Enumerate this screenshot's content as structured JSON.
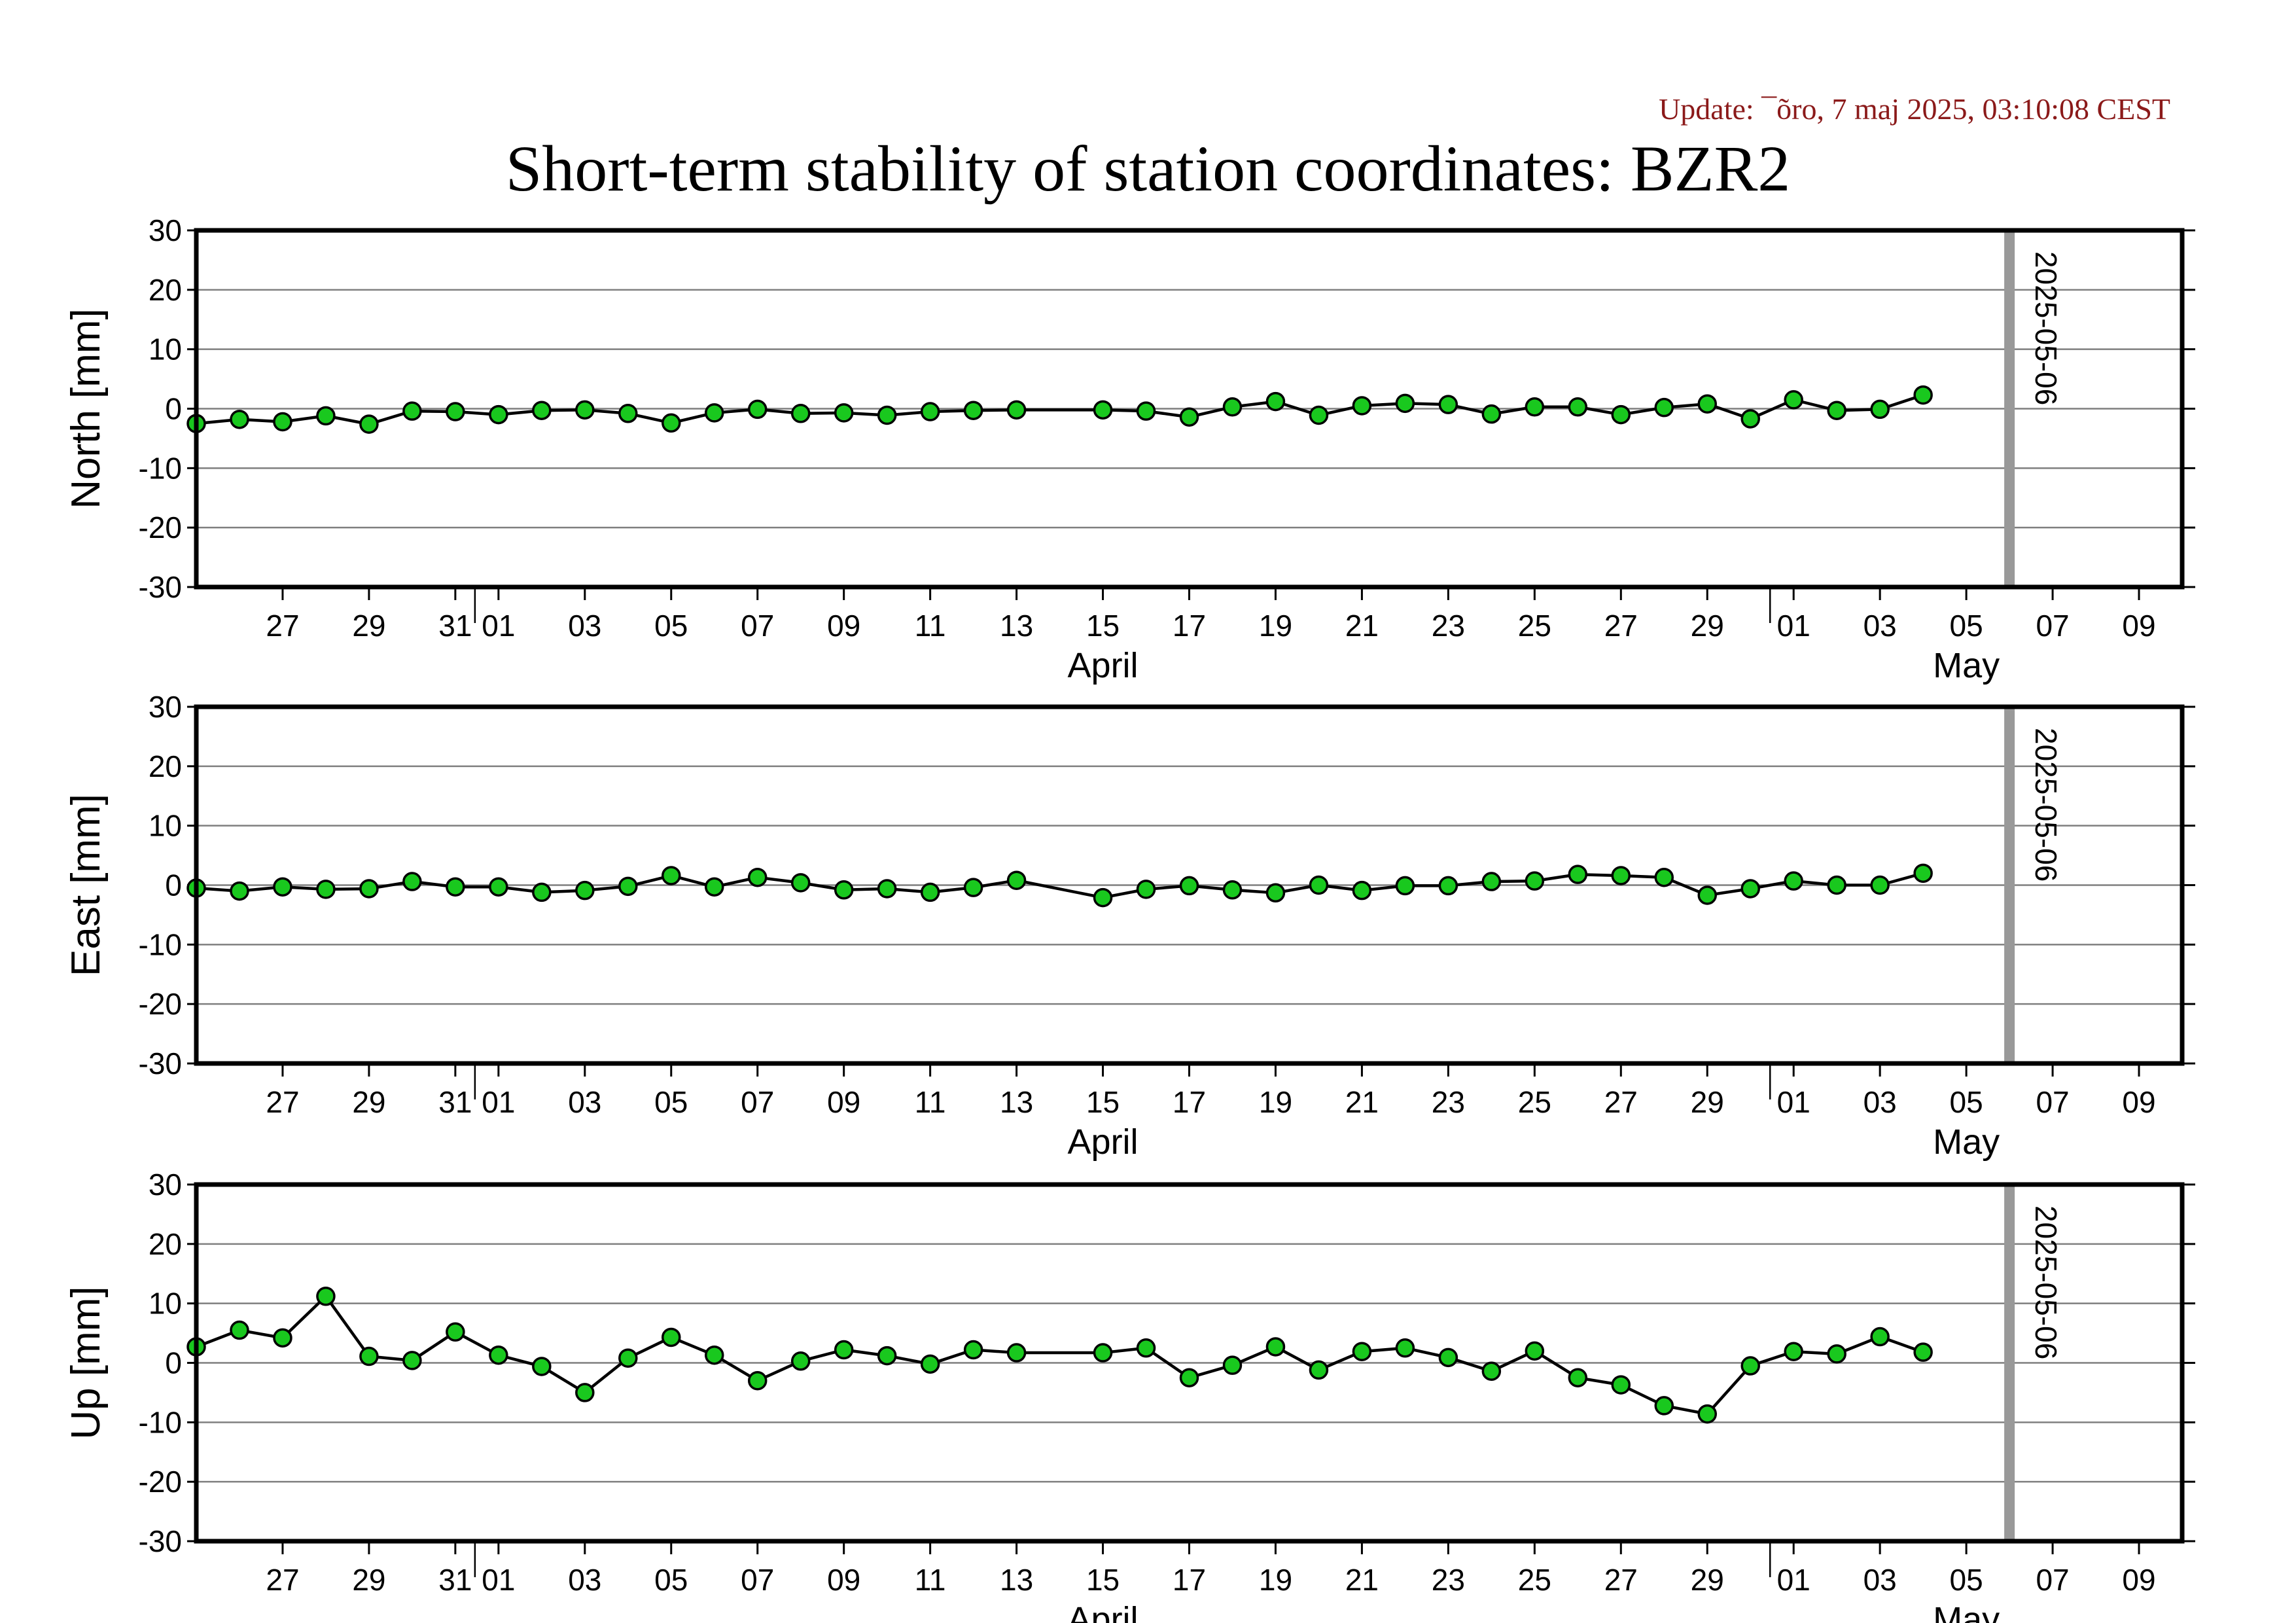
{
  "update_text": "Update: ¯õro, 7 maj 2025, 03:10:08 CEST",
  "title": "Short-term stability of station coordinates: BZR2",
  "colors": {
    "point_fill": "#19c81e",
    "point_stroke": "#000000",
    "line": "#000000",
    "grid": "#7f7f7f",
    "marker_line": "#999999",
    "update_text": "#8b1a1a"
  },
  "chart_data": [
    {
      "type": "line",
      "title": "",
      "ylabel": "North [mm]",
      "ylim": [
        -30,
        30
      ],
      "yticks": [
        -30,
        -20,
        -10,
        0,
        10,
        20,
        30
      ],
      "xlim": [
        "2025-03-25",
        "2025-05-10"
      ],
      "x_tick_dates": [
        "2025-03-27",
        "2025-03-29",
        "2025-03-31",
        "2025-04-01",
        "2025-04-03",
        "2025-04-05",
        "2025-04-07",
        "2025-04-09",
        "2025-04-11",
        "2025-04-13",
        "2025-04-15",
        "2025-04-17",
        "2025-04-19",
        "2025-04-21",
        "2025-04-23",
        "2025-04-25",
        "2025-04-27",
        "2025-04-29",
        "2025-05-01",
        "2025-05-03",
        "2025-05-05",
        "2025-05-07",
        "2025-05-09"
      ],
      "x_tick_labels": [
        "27",
        "29",
        "31",
        "01",
        "03",
        "05",
        "07",
        "09",
        "11",
        "13",
        "15",
        "17",
        "19",
        "21",
        "23",
        "25",
        "27",
        "29",
        "01",
        "03",
        "05",
        "07",
        "09"
      ],
      "month_labels": [
        {
          "text": "April",
          "date": "2025-04-15"
        },
        {
          "text": "May",
          "date": "2025-05-05"
        }
      ],
      "month_boundaries": [
        "2025-03-31",
        "2025-04-30"
      ],
      "marker": {
        "date": "2025-05-06",
        "label": "2025-05-06"
      },
      "grid": true,
      "series": [
        {
          "x": [
            "2025-03-25",
            "2025-03-26",
            "2025-03-27",
            "2025-03-28",
            "2025-03-29",
            "2025-03-30",
            "2025-03-31",
            "2025-04-01",
            "2025-04-02",
            "2025-04-03",
            "2025-04-04",
            "2025-04-05",
            "2025-04-06",
            "2025-04-07",
            "2025-04-08",
            "2025-04-09",
            "2025-04-10",
            "2025-04-11",
            "2025-04-12",
            "2025-04-13",
            "2025-04-15",
            "2025-04-16",
            "2025-04-17",
            "2025-04-18",
            "2025-04-19",
            "2025-04-20",
            "2025-04-21",
            "2025-04-22",
            "2025-04-23",
            "2025-04-24",
            "2025-04-25",
            "2025-04-26",
            "2025-04-27",
            "2025-04-28",
            "2025-04-29",
            "2025-04-30",
            "2025-05-01",
            "2025-05-02",
            "2025-05-03",
            "2025-05-04"
          ],
          "values": [
            -2.5,
            -1.8,
            -2.2,
            -1.2,
            -2.6,
            -0.4,
            -0.5,
            -1.0,
            -0.3,
            -0.2,
            -0.8,
            -2.4,
            -0.7,
            -0.1,
            -0.8,
            -0.7,
            -1.1,
            -0.5,
            -0.3,
            -0.2,
            -0.2,
            -0.4,
            -1.4,
            0.3,
            1.2,
            -1.1,
            0.5,
            0.9,
            0.7,
            -0.9,
            0.3,
            0.3,
            -1.0,
            0.2,
            0.8,
            -1.7,
            1.5,
            -0.3,
            -0.1,
            2.3
          ]
        }
      ]
    },
    {
      "type": "line",
      "title": "",
      "ylabel": "East [mm]",
      "ylim": [
        -30,
        30
      ],
      "yticks": [
        -30,
        -20,
        -10,
        0,
        10,
        20,
        30
      ],
      "xlim": [
        "2025-03-25",
        "2025-05-10"
      ],
      "x_tick_dates": [
        "2025-03-27",
        "2025-03-29",
        "2025-03-31",
        "2025-04-01",
        "2025-04-03",
        "2025-04-05",
        "2025-04-07",
        "2025-04-09",
        "2025-04-11",
        "2025-04-13",
        "2025-04-15",
        "2025-04-17",
        "2025-04-19",
        "2025-04-21",
        "2025-04-23",
        "2025-04-25",
        "2025-04-27",
        "2025-04-29",
        "2025-05-01",
        "2025-05-03",
        "2025-05-05",
        "2025-05-07",
        "2025-05-09"
      ],
      "x_tick_labels": [
        "27",
        "29",
        "31",
        "01",
        "03",
        "05",
        "07",
        "09",
        "11",
        "13",
        "15",
        "17",
        "19",
        "21",
        "23",
        "25",
        "27",
        "29",
        "01",
        "03",
        "05",
        "07",
        "09"
      ],
      "month_labels": [
        {
          "text": "April",
          "date": "2025-04-15"
        },
        {
          "text": "May",
          "date": "2025-05-05"
        }
      ],
      "month_boundaries": [
        "2025-03-31",
        "2025-04-30"
      ],
      "marker": {
        "date": "2025-05-06",
        "label": "2025-05-06"
      },
      "grid": true,
      "series": [
        {
          "x": [
            "2025-03-25",
            "2025-03-26",
            "2025-03-27",
            "2025-03-28",
            "2025-03-29",
            "2025-03-30",
            "2025-03-31",
            "2025-04-01",
            "2025-04-02",
            "2025-04-03",
            "2025-04-04",
            "2025-04-05",
            "2025-04-06",
            "2025-04-07",
            "2025-04-08",
            "2025-04-09",
            "2025-04-10",
            "2025-04-11",
            "2025-04-12",
            "2025-04-13",
            "2025-04-15",
            "2025-04-16",
            "2025-04-17",
            "2025-04-18",
            "2025-04-19",
            "2025-04-20",
            "2025-04-21",
            "2025-04-22",
            "2025-04-23",
            "2025-04-24",
            "2025-04-25",
            "2025-04-26",
            "2025-04-27",
            "2025-04-28",
            "2025-04-29",
            "2025-04-30",
            "2025-05-01",
            "2025-05-02",
            "2025-05-03",
            "2025-05-04"
          ],
          "values": [
            -0.5,
            -1.0,
            -0.3,
            -0.7,
            -0.6,
            0.6,
            -0.3,
            -0.3,
            -1.2,
            -0.9,
            -0.2,
            1.6,
            -0.3,
            1.3,
            0.4,
            -0.8,
            -0.6,
            -1.2,
            -0.4,
            0.8,
            -2.1,
            -0.7,
            -0.1,
            -0.8,
            -1.3,
            0.0,
            -0.9,
            -0.1,
            -0.1,
            0.6,
            0.7,
            1.8,
            1.6,
            1.3,
            -1.7,
            -0.6,
            0.7,
            0.0,
            0.0,
            2.0
          ]
        }
      ]
    },
    {
      "type": "line",
      "title": "",
      "ylabel": "Up [mm]",
      "ylim": [
        -30,
        30
      ],
      "yticks": [
        -30,
        -20,
        -10,
        0,
        10,
        20,
        30
      ],
      "xlim": [
        "2025-03-25",
        "2025-05-10"
      ],
      "x_tick_dates": [
        "2025-03-27",
        "2025-03-29",
        "2025-03-31",
        "2025-04-01",
        "2025-04-03",
        "2025-04-05",
        "2025-04-07",
        "2025-04-09",
        "2025-04-11",
        "2025-04-13",
        "2025-04-15",
        "2025-04-17",
        "2025-04-19",
        "2025-04-21",
        "2025-04-23",
        "2025-04-25",
        "2025-04-27",
        "2025-04-29",
        "2025-05-01",
        "2025-05-03",
        "2025-05-05",
        "2025-05-07",
        "2025-05-09"
      ],
      "x_tick_labels": [
        "27",
        "29",
        "31",
        "01",
        "03",
        "05",
        "07",
        "09",
        "11",
        "13",
        "15",
        "17",
        "19",
        "21",
        "23",
        "25",
        "27",
        "29",
        "01",
        "03",
        "05",
        "07",
        "09"
      ],
      "month_labels": [
        {
          "text": "April",
          "date": "2025-04-15"
        },
        {
          "text": "May",
          "date": "2025-05-05"
        }
      ],
      "month_boundaries": [
        "2025-03-31",
        "2025-04-30"
      ],
      "marker": {
        "date": "2025-05-06",
        "label": "2025-05-06"
      },
      "grid": true,
      "series": [
        {
          "x": [
            "2025-03-25",
            "2025-03-26",
            "2025-03-27",
            "2025-03-28",
            "2025-03-29",
            "2025-03-30",
            "2025-03-31",
            "2025-04-01",
            "2025-04-02",
            "2025-04-03",
            "2025-04-04",
            "2025-04-05",
            "2025-04-06",
            "2025-04-07",
            "2025-04-08",
            "2025-04-09",
            "2025-04-10",
            "2025-04-11",
            "2025-04-12",
            "2025-04-13",
            "2025-04-15",
            "2025-04-16",
            "2025-04-17",
            "2025-04-18",
            "2025-04-19",
            "2025-04-20",
            "2025-04-21",
            "2025-04-22",
            "2025-04-23",
            "2025-04-24",
            "2025-04-25",
            "2025-04-26",
            "2025-04-27",
            "2025-04-28",
            "2025-04-29",
            "2025-04-30",
            "2025-05-01",
            "2025-05-02",
            "2025-05-03",
            "2025-05-04"
          ],
          "values": [
            2.7,
            5.5,
            4.2,
            11.2,
            1.1,
            0.4,
            5.2,
            1.3,
            -0.6,
            -5.0,
            0.8,
            4.3,
            1.3,
            -3.0,
            0.3,
            2.2,
            1.2,
            -0.2,
            2.2,
            1.7,
            1.7,
            2.5,
            -2.5,
            -0.4,
            2.7,
            -1.2,
            1.9,
            2.5,
            0.9,
            -1.4,
            2.0,
            -2.5,
            -3.7,
            -7.2,
            -8.6,
            -0.5,
            1.9,
            1.5,
            4.4,
            1.8
          ]
        }
      ]
    }
  ]
}
